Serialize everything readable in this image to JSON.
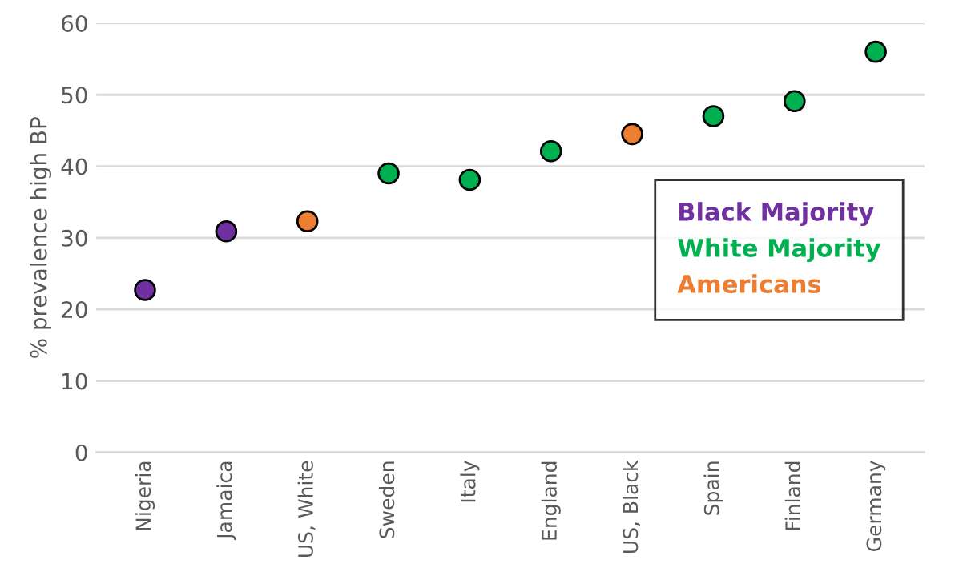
{
  "chart_data": {
    "type": "scatter",
    "ylabel": "% prevalence high BP",
    "categories": [
      "Nigeria",
      "Jamaica",
      "US, White",
      "Sweden",
      "Italy",
      "England",
      "US, Black",
      "Spain",
      "Finland",
      "Germany"
    ],
    "series": [
      {
        "name": "Black Majority",
        "color": "#7030a0",
        "values": [
          22.7,
          30.9,
          null,
          null,
          null,
          null,
          null,
          null,
          null,
          null
        ]
      },
      {
        "name": "White Majority",
        "color": "#00b050",
        "values": [
          null,
          null,
          null,
          39.0,
          38.1,
          42.1,
          null,
          47.0,
          49.1,
          56.0
        ]
      },
      {
        "name": "Americans",
        "color": "#ed7d31",
        "values": [
          null,
          null,
          32.3,
          null,
          null,
          null,
          44.5,
          null,
          null,
          null
        ]
      }
    ],
    "ylim": [
      0,
      60
    ],
    "yticks": [
      0,
      10,
      20,
      30,
      40,
      50,
      60
    ],
    "grid": "y",
    "legend": "right",
    "marker": "circle"
  }
}
